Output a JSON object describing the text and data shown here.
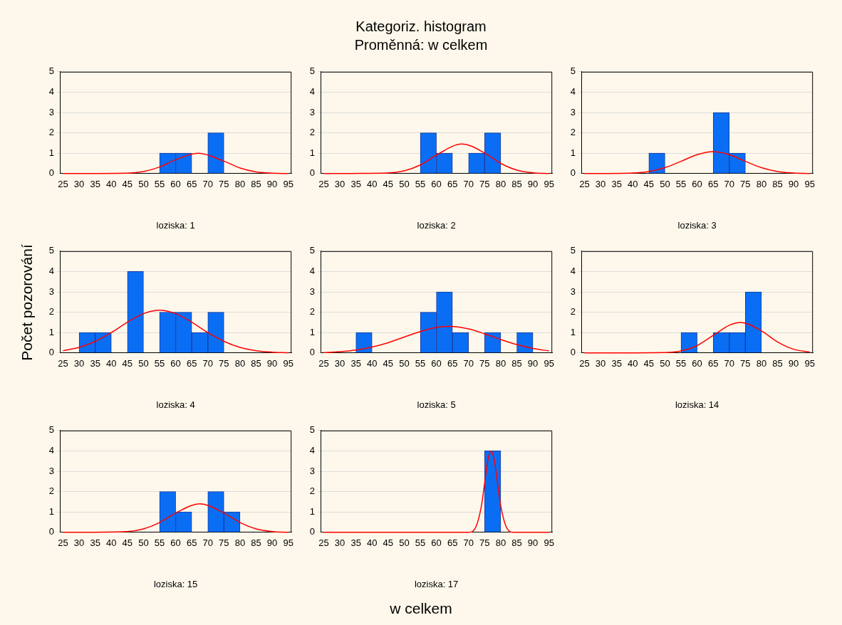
{
  "chart_data": [
    {
      "type": "histogram",
      "xlabel": "loziska: 1",
      "bins": [
        25,
        30,
        35,
        40,
        45,
        50,
        55,
        60,
        65,
        70,
        75,
        80,
        85,
        90,
        95
      ],
      "values": [
        0,
        0,
        0,
        0,
        0,
        0,
        1,
        1,
        0,
        2,
        0,
        0,
        0,
        0
      ],
      "color": "#0a6ef5",
      "series": [
        {
          "type": "line",
          "color": "#ff0000",
          "x": [
            25,
            45,
            50,
            55,
            60,
            67,
            75,
            80,
            85,
            90,
            95
          ],
          "values": [
            0,
            0.02,
            0.1,
            0.32,
            0.68,
            1,
            0.61,
            0.27,
            0.08,
            0.02,
            0
          ]
        }
      ],
      "xlim": [
        24,
        96
      ],
      "xticks": [
        25,
        30,
        35,
        40,
        45,
        50,
        55,
        60,
        65,
        70,
        75,
        80,
        85,
        90,
        95
      ],
      "ylim": [
        0,
        5
      ],
      "yticks": [
        0,
        1,
        2,
        3,
        4,
        5
      ],
      "grid": "y"
    },
    {
      "type": "histogram",
      "title": "Kategoriz. histogram",
      "subtitle": "Proměnná: w celkem",
      "xlabel": "loziska: 2",
      "bins": [
        25,
        30,
        35,
        40,
        45,
        50,
        55,
        60,
        65,
        70,
        75,
        80,
        85,
        90,
        95
      ],
      "values": [
        0,
        0,
        0,
        0,
        0,
        0,
        2,
        1,
        0,
        1,
        2,
        0,
        0,
        0
      ],
      "color": "#0a6ef5",
      "series": [
        {
          "type": "line",
          "color": "#ff0000",
          "x": [
            25,
            45,
            50,
            55,
            60,
            68,
            75,
            80,
            85,
            90,
            95
          ],
          "values": [
            0,
            0.03,
            0.13,
            0.42,
            0.91,
            1.45,
            1.01,
            0.5,
            0.17,
            0.04,
            0
          ]
        }
      ],
      "xlim": [
        24,
        96
      ],
      "xticks": [
        25,
        30,
        35,
        40,
        45,
        50,
        55,
        60,
        65,
        70,
        75,
        80,
        85,
        90,
        95
      ],
      "ylim": [
        0,
        5
      ],
      "yticks": [
        0,
        1,
        2,
        3,
        4,
        5
      ],
      "grid": "y"
    },
    {
      "type": "histogram",
      "xlabel": "loziska: 3",
      "bins": [
        25,
        30,
        35,
        40,
        45,
        50,
        55,
        60,
        65,
        70,
        75,
        80,
        85,
        90,
        95
      ],
      "values": [
        0,
        0,
        0,
        0,
        1,
        0,
        0,
        0,
        3,
        1,
        0,
        0,
        0,
        0
      ],
      "color": "#0a6ef5",
      "series": [
        {
          "type": "line",
          "color": "#ff0000",
          "x": [
            25,
            40,
            45,
            50,
            55,
            60,
            65,
            70,
            75,
            80,
            85,
            90,
            95
          ],
          "values": [
            0,
            0.03,
            0.1,
            0.29,
            0.6,
            0.93,
            1.08,
            0.93,
            0.6,
            0.29,
            0.1,
            0.03,
            0
          ]
        }
      ],
      "xlim": [
        24,
        96
      ],
      "xticks": [
        25,
        30,
        35,
        40,
        45,
        50,
        55,
        60,
        65,
        70,
        75,
        80,
        85,
        90,
        95
      ],
      "ylim": [
        0,
        5
      ],
      "yticks": [
        0,
        1,
        2,
        3,
        4,
        5
      ],
      "grid": "y"
    },
    {
      "type": "histogram",
      "ylabel": "Počet pozorování",
      "xlabel": "loziska: 4",
      "bins": [
        25,
        30,
        35,
        40,
        45,
        50,
        55,
        60,
        65,
        70,
        75,
        80,
        85,
        90,
        95
      ],
      "values": [
        0,
        1,
        1,
        0,
        4,
        0,
        2,
        2,
        1,
        2,
        0,
        0,
        0,
        0
      ],
      "color": "#0a6ef5",
      "series": [
        {
          "type": "line",
          "color": "#ff0000",
          "x": [
            25,
            30,
            35,
            40,
            45,
            50,
            55,
            60,
            65,
            70,
            75,
            80,
            85,
            90,
            95
          ],
          "values": [
            0.11,
            0.27,
            0.57,
            1,
            1.51,
            1.93,
            2.1,
            1.93,
            1.51,
            1,
            0.57,
            0.27,
            0.11,
            0.04,
            0.01
          ]
        }
      ],
      "xlim": [
        24,
        96
      ],
      "xticks": [
        25,
        30,
        35,
        40,
        45,
        50,
        55,
        60,
        65,
        70,
        75,
        80,
        85,
        90,
        95
      ],
      "ylim": [
        0,
        5
      ],
      "yticks": [
        0,
        1,
        2,
        3,
        4,
        5
      ],
      "grid": "y"
    },
    {
      "type": "histogram",
      "xlabel": "loziska: 5",
      "bins": [
        25,
        30,
        35,
        40,
        45,
        50,
        55,
        60,
        65,
        70,
        75,
        80,
        85,
        90,
        95
      ],
      "values": [
        0,
        0,
        1,
        0,
        0,
        0,
        2,
        3,
        1,
        0,
        1,
        0,
        1,
        0
      ],
      "color": "#0a6ef5",
      "series": [
        {
          "type": "line",
          "color": "#ff0000",
          "x": [
            25,
            30,
            35,
            40,
            45,
            50,
            55,
            60,
            64,
            70,
            75,
            80,
            85,
            90,
            95
          ],
          "values": [
            0.02,
            0.06,
            0.14,
            0.29,
            0.5,
            0.78,
            1.05,
            1.25,
            1.3,
            1.18,
            0.94,
            0.66,
            0.41,
            0.22,
            0.1
          ]
        }
      ],
      "xlim": [
        24,
        96
      ],
      "xticks": [
        25,
        30,
        35,
        40,
        45,
        50,
        55,
        60,
        65,
        70,
        75,
        80,
        85,
        90,
        95
      ],
      "ylim": [
        0,
        5
      ],
      "yticks": [
        0,
        1,
        2,
        3,
        4,
        5
      ],
      "grid": "y"
    },
    {
      "type": "histogram",
      "xlabel": "loziska: 14",
      "bins": [
        25,
        30,
        35,
        40,
        45,
        50,
        55,
        60,
        65,
        70,
        75,
        80,
        85,
        90,
        95
      ],
      "values": [
        0,
        0,
        0,
        0,
        0,
        0,
        1,
        0,
        1,
        1,
        3,
        0,
        0,
        0
      ],
      "color": "#0a6ef5",
      "series": [
        {
          "type": "line",
          "color": "#ff0000",
          "x": [
            25,
            50,
            55,
            60,
            65,
            70,
            73.5,
            80,
            85,
            90,
            95
          ],
          "values": [
            0,
            0.02,
            0.1,
            0.36,
            0.86,
            1.36,
            1.5,
            1.08,
            0.54,
            0.18,
            0.04
          ]
        }
      ],
      "xlim": [
        24,
        96
      ],
      "xticks": [
        25,
        30,
        35,
        40,
        45,
        50,
        55,
        60,
        65,
        70,
        75,
        80,
        85,
        90,
        95
      ],
      "ylim": [
        0,
        5
      ],
      "yticks": [
        0,
        1,
        2,
        3,
        4,
        5
      ],
      "grid": "y"
    },
    {
      "type": "histogram",
      "xlabel": "loziska: 15",
      "bins": [
        25,
        30,
        35,
        40,
        45,
        50,
        55,
        60,
        65,
        70,
        75,
        80,
        85,
        90,
        95
      ],
      "values": [
        0,
        0,
        0,
        0,
        0,
        0,
        2,
        1,
        0,
        2,
        1,
        0,
        0,
        0
      ],
      "color": "#0a6ef5",
      "series": [
        {
          "type": "line",
          "color": "#ff0000",
          "x": [
            25,
            45,
            50,
            55,
            60,
            67.5,
            75,
            80,
            85,
            90,
            95
          ],
          "values": [
            0,
            0.04,
            0.17,
            0.48,
            0.95,
            1.4,
            0.95,
            0.48,
            0.17,
            0.04,
            0
          ]
        }
      ],
      "xlim": [
        24,
        96
      ],
      "xticks": [
        25,
        30,
        35,
        40,
        45,
        50,
        55,
        60,
        65,
        70,
        75,
        80,
        85,
        90,
        95
      ],
      "ylim": [
        0,
        5
      ],
      "yticks": [
        0,
        1,
        2,
        3,
        4,
        5
      ],
      "grid": "y"
    },
    {
      "type": "histogram",
      "xlabel": "loziska: 17",
      "annotations": [
        "w celkem"
      ],
      "bins": [
        25,
        30,
        35,
        40,
        45,
        50,
        55,
        60,
        65,
        70,
        75,
        80,
        85,
        90,
        95
      ],
      "values": [
        0,
        0,
        0,
        0,
        0,
        0,
        0,
        0,
        0,
        0,
        4,
        0,
        0,
        0
      ],
      "color": "#0a6ef5",
      "series": [
        {
          "type": "line",
          "color": "#ff0000",
          "x": [
            25,
            70,
            72,
            74,
            75,
            76,
            77,
            78,
            79,
            80,
            82,
            84,
            95
          ],
          "values": [
            0,
            0,
            0.18,
            1.3,
            2.43,
            3.53,
            4,
            3.53,
            2.43,
            1.3,
            0.18,
            0,
            0
          ]
        }
      ],
      "xlim": [
        24,
        96
      ],
      "xticks": [
        25,
        30,
        35,
        40,
        45,
        50,
        55,
        60,
        65,
        70,
        75,
        80,
        85,
        90,
        95
      ],
      "ylim": [
        0,
        5
      ],
      "yticks": [
        0,
        1,
        2,
        3,
        4,
        5
      ],
      "grid": "y"
    }
  ]
}
